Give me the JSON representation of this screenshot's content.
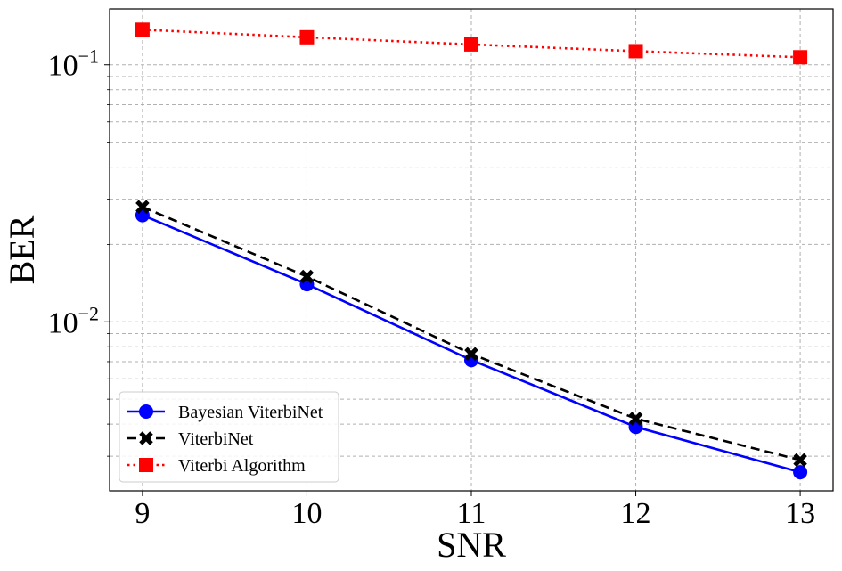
{
  "chart_data": {
    "type": "line",
    "xlabel": "SNR",
    "ylabel": "BER",
    "yscale": "log",
    "x": [
      9,
      10,
      11,
      12,
      13
    ],
    "xlim": [
      8.8,
      13.2
    ],
    "ylim": [
      0.0022,
      0.165
    ],
    "grid": true,
    "legend_position": "lower-left",
    "x_ticks": [
      {
        "value": 9,
        "label": "9"
      },
      {
        "value": 10,
        "label": "10"
      },
      {
        "value": 11,
        "label": "11"
      },
      {
        "value": 12,
        "label": "12"
      },
      {
        "value": 13,
        "label": "13"
      }
    ],
    "y_major_ticks": [
      {
        "value": 0.01,
        "base": "10",
        "exp": "−2"
      },
      {
        "value": 0.1,
        "base": "10",
        "exp": "−1"
      }
    ],
    "y_minor_ticks": [
      0.003,
      0.004,
      0.005,
      0.006,
      0.007,
      0.008,
      0.009,
      0.02,
      0.03,
      0.04,
      0.05,
      0.06,
      0.07,
      0.08,
      0.09
    ],
    "series": [
      {
        "name": "Bayesian ViterbiNet",
        "color": "#0000ff",
        "marker": "circle",
        "linestyle": "solid",
        "values": [
          0.026,
          0.014,
          0.0071,
          0.0039,
          0.0026
        ]
      },
      {
        "name": "ViterbiNet",
        "color": "#000000",
        "marker": "x",
        "linestyle": "dashed",
        "values": [
          0.028,
          0.015,
          0.0075,
          0.0042,
          0.0029
        ]
      },
      {
        "name": "Viterbi Algorithm",
        "color": "#ff0000",
        "marker": "square",
        "linestyle": "dotted",
        "values": [
          0.137,
          0.128,
          0.12,
          0.113,
          0.107
        ]
      }
    ]
  }
}
